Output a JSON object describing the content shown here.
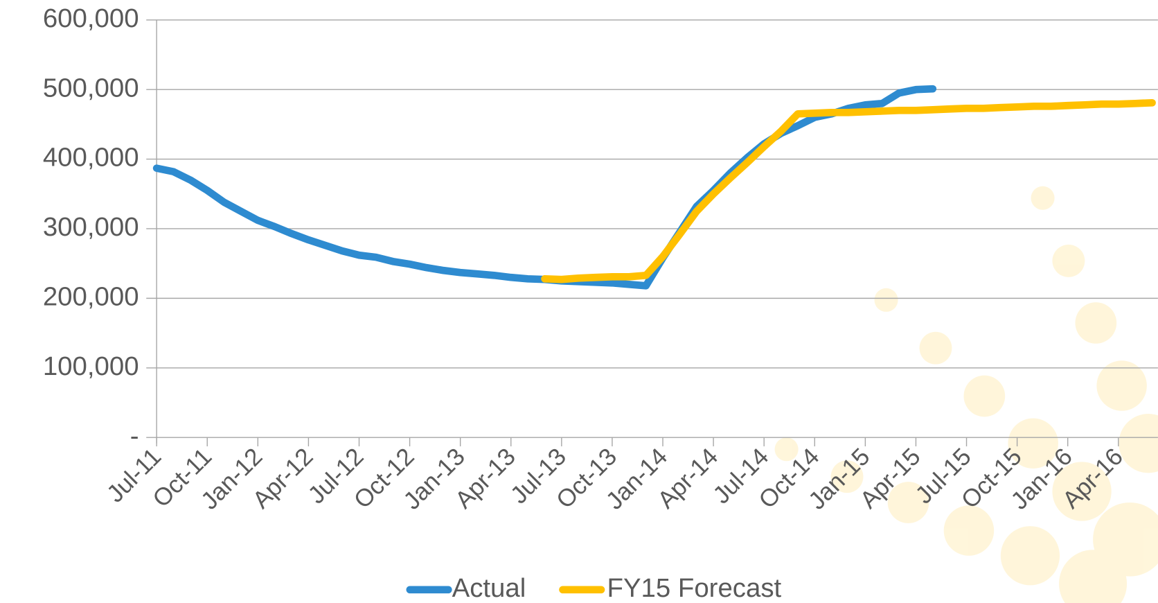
{
  "chart_data": {
    "type": "line",
    "categories": [
      "Jul-11",
      null,
      null,
      "Oct-11",
      null,
      null,
      "Jan-12",
      null,
      null,
      "Apr-12",
      null,
      null,
      "Jul-12",
      null,
      null,
      "Oct-12",
      null,
      null,
      "Jan-13",
      null,
      null,
      "Apr-13",
      null,
      null,
      "Jul-13",
      null,
      null,
      "Oct-13",
      null,
      null,
      "Jan-14",
      null,
      null,
      "Apr-14",
      null,
      null,
      "Jul-14",
      null,
      null,
      "Oct-14",
      null,
      null,
      "Jan-15",
      null,
      null,
      "Apr-15",
      null,
      null,
      "Jul-15",
      null,
      null,
      "Oct-15",
      null,
      null,
      "Jan-16",
      null,
      null,
      "Apr-16",
      null,
      null
    ],
    "series": [
      {
        "name": "Actual",
        "color": "#2e8bd0",
        "values": [
          387000,
          382000,
          370000,
          355000,
          338000,
          325000,
          312000,
          303000,
          293000,
          284000,
          276000,
          268000,
          262000,
          259000,
          253000,
          249000,
          244000,
          240000,
          237000,
          235000,
          233000,
          230000,
          228000,
          227000,
          225000,
          224000,
          223000,
          222000,
          220000,
          218000,
          258000,
          295000,
          332000,
          355000,
          380000,
          402000,
          422000,
          437000,
          448000,
          460000,
          465000,
          473000,
          478000,
          480000,
          495000,
          500000,
          501000,
          null,
          null,
          null,
          null,
          null,
          null,
          null,
          null,
          null,
          null,
          null,
          null,
          null
        ]
      },
      {
        "name": "FY15 Forecast",
        "color": "#ffc000",
        "values": [
          null,
          null,
          null,
          null,
          null,
          null,
          null,
          null,
          null,
          null,
          null,
          null,
          null,
          null,
          null,
          null,
          null,
          null,
          null,
          null,
          null,
          null,
          null,
          228000,
          227000,
          229000,
          230000,
          231000,
          231000,
          233000,
          260000,
          292000,
          325000,
          350000,
          373000,
          395000,
          418000,
          440000,
          465000,
          466000,
          467000,
          467000,
          468000,
          469000,
          470000,
          470000,
          471000,
          472000,
          473000,
          473000,
          474000,
          475000,
          476000,
          476000,
          477000,
          478000,
          479000,
          479000,
          480000,
          481000
        ]
      }
    ],
    "ylim": [
      0,
      600000
    ],
    "yticks": [
      {
        "value": 0,
        "label": "-"
      },
      {
        "value": 100000,
        "label": "100,000"
      },
      {
        "value": 200000,
        "label": "200,000"
      },
      {
        "value": 300000,
        "label": "300,000"
      },
      {
        "value": 400000,
        "label": "400,000"
      },
      {
        "value": 500000,
        "label": "500,000"
      },
      {
        "value": 600000,
        "label": "600,000"
      }
    ],
    "grid": true,
    "legend": "bottom"
  }
}
